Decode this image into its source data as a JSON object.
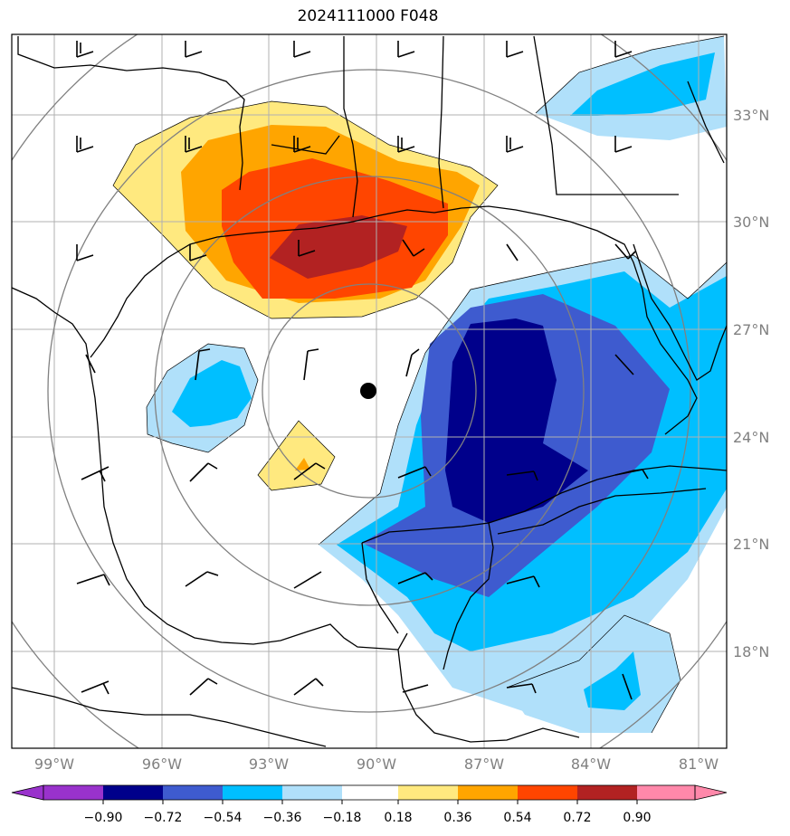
{
  "title": "2024111000 F048",
  "lon_labels": [
    "99°W",
    "96°W",
    "93°W",
    "90°W",
    "87°W",
    "84°W",
    "81°W"
  ],
  "lat_labels": [
    "33°N",
    "30°N",
    "27°N",
    "24°N",
    "21°N",
    "18°N"
  ],
  "colorbar": {
    "ticks": [
      "−0.90",
      "−0.72",
      "−0.54",
      "−0.36",
      "−0.18",
      "0.18",
      "0.36",
      "0.54",
      "0.72",
      "0.90"
    ],
    "colors": [
      "#9932cc",
      "#00008b",
      "#3e5bcf",
      "#00bfff",
      "#b0e0fa",
      "#ffffff",
      "#ffe97f",
      "#ffa500",
      "#ff4500",
      "#b22222",
      "#ff88aa"
    ]
  },
  "colors": {
    "coast": "#000000",
    "grid": "#b0b0b0",
    "rings": "#808080",
    "center_marker": "#000000"
  }
}
